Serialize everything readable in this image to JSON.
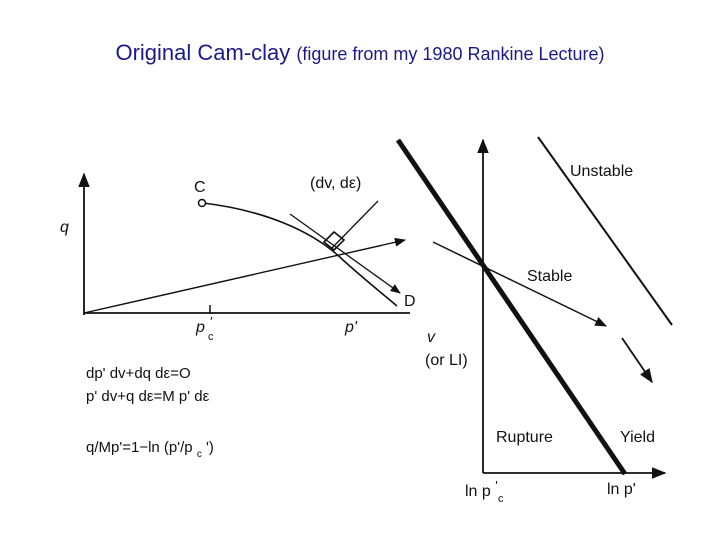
{
  "title": {
    "main": "Original Cam-clay",
    "sub": "(figure from my 1980 Rankine Lecture)"
  },
  "left_diagram": {
    "point_c": "C",
    "point_d": "D",
    "y_axis": "q",
    "x_axis": "p'",
    "x_tick_main": "p",
    "x_tick_sub": "c",
    "x_tick_prime": "'",
    "increment": "(dv, dε)"
  },
  "equations": {
    "eq1": "dp' dv+dq dε=O",
    "eq2": "p' dv+q dε=M p' dε",
    "eq3": "q/Mp'=1−ln (p'/p",
    "eq3_sub": "c",
    "eq3_end": "')"
  },
  "right_diagram": {
    "y_axis_1": "v",
    "y_axis_2": "(or LI)",
    "x_tick_1_main": "ln p",
    "x_tick_1_sub": "c",
    "x_tick_1_prime": "'",
    "x_tick_2": "ln p'",
    "region_unstable": "Unstable",
    "region_stable": "Stable",
    "region_rupture": "Rupture",
    "region_yield": "Yield"
  },
  "colors": {
    "title": "#1a1a8c",
    "ink": "#111111"
  }
}
